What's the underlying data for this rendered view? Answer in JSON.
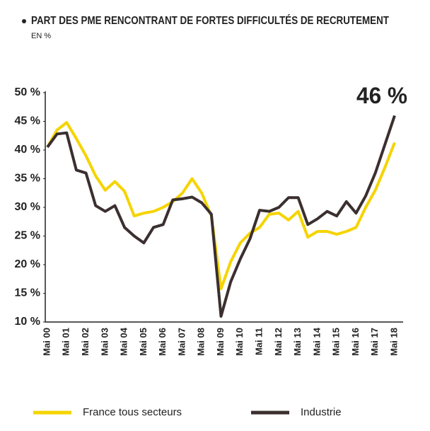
{
  "chart_data": {
    "type": "line",
    "title": "PART DES PME RENCONTRANT DE FORTES DIFFICULTÉS DE RECRUTEMENT",
    "subtitle": "EN %",
    "annotation": "46 %",
    "categories": [
      "Mai 00",
      null,
      "Mai 01",
      null,
      "Mai 02",
      null,
      "Mai 03",
      null,
      "Mai 04",
      null,
      "Mai 05",
      null,
      "Mai 06",
      null,
      "Mai 07",
      null,
      "Mai 08",
      null,
      "Mai 09",
      null,
      "Mai 10",
      null,
      "Mai 11",
      null,
      "Mai 12",
      null,
      "Mai 13",
      null,
      "Mai 14",
      null,
      "Mai 15",
      null,
      "Mai 16",
      null,
      "Mai 17",
      null,
      "Mai 18"
    ],
    "series": [
      {
        "name": "France tous secteurs",
        "color": "#f5d400",
        "values": [
          40.5,
          43.5,
          44.8,
          42,
          39,
          35.5,
          33,
          34.5,
          32.8,
          28.5,
          29,
          29.3,
          30,
          31,
          32.5,
          35,
          32.5,
          28.5,
          15.8,
          20.5,
          23.8,
          25.5,
          26.5,
          28.8,
          29,
          27.8,
          29.3,
          24.8,
          25.8,
          25.8,
          25.3,
          25.8,
          26.5,
          30,
          33,
          37,
          41.3
        ]
      },
      {
        "name": "Industrie",
        "color": "#3b2f2f",
        "values": [
          40.5,
          42.8,
          43,
          36.5,
          36,
          30.3,
          29.3,
          30.3,
          26.5,
          25,
          23.8,
          26.5,
          27,
          31.3,
          31.5,
          31.8,
          30.8,
          28.8,
          11,
          17,
          21,
          24.5,
          29.5,
          29.3,
          30,
          31.7,
          31.7,
          27,
          28,
          29.3,
          28.5,
          31,
          29,
          32,
          36,
          41,
          46
        ]
      }
    ],
    "ylim": [
      10,
      50
    ],
    "yticks": [
      {
        "value": 10,
        "label": "10 %"
      },
      {
        "value": 15,
        "label": "15 %"
      },
      {
        "value": 20,
        "label": "20 %"
      },
      {
        "value": 25,
        "label": "25 %"
      },
      {
        "value": 30,
        "label": "30 %"
      },
      {
        "value": 35,
        "label": "35 %"
      },
      {
        "value": 40,
        "label": "40 %"
      },
      {
        "value": 45,
        "label": "45 %"
      },
      {
        "value": 50,
        "label": "50 %"
      }
    ],
    "grid": false
  }
}
